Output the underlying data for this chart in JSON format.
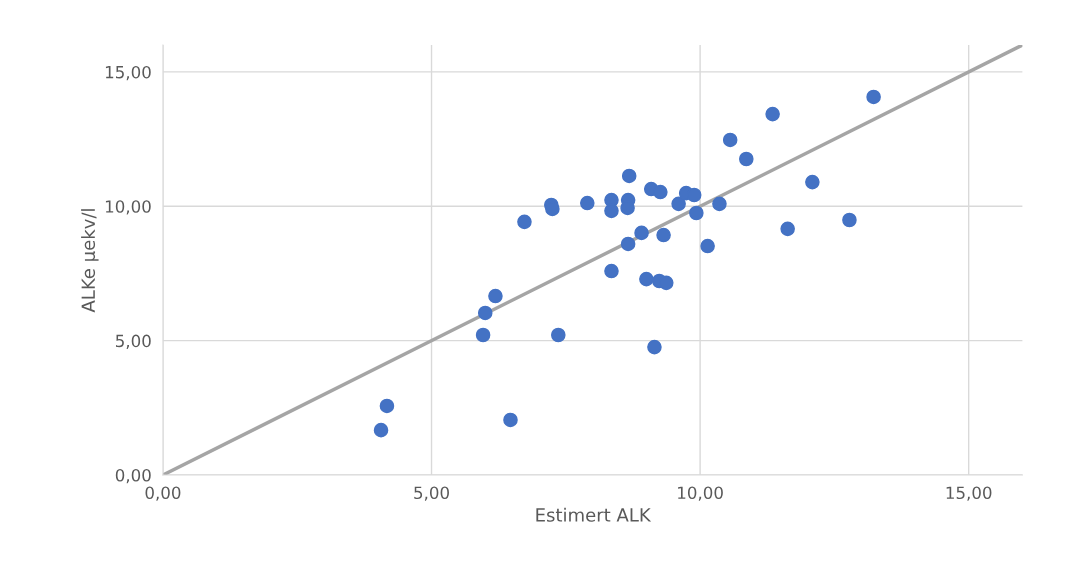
{
  "chart_data": {
    "type": "scatter",
    "xlabel": "Estimert ALK",
    "ylabel": "ALKe µekv/l",
    "xlim": [
      0,
      16
    ],
    "ylim": [
      0,
      16
    ],
    "xticks": [
      {
        "value": 0,
        "label": "0,00"
      },
      {
        "value": 5,
        "label": "5,00"
      },
      {
        "value": 10,
        "label": "10,00"
      },
      {
        "value": 15,
        "label": "15,00"
      }
    ],
    "yticks": [
      {
        "value": 0,
        "label": "0,00"
      },
      {
        "value": 5,
        "label": "5,00"
      },
      {
        "value": 10,
        "label": "10,00"
      },
      {
        "value": 15,
        "label": "15,00"
      }
    ],
    "grid": true,
    "marker": "circle",
    "series": [
      {
        "color": "#4472c4",
        "x": [
          4.06,
          4.17,
          6.47,
          5.96,
          6.0,
          6.19,
          7.36,
          6.73,
          7.23,
          7.25,
          7.9,
          8.35,
          8.35,
          8.35,
          8.66,
          8.65,
          8.68,
          8.66,
          8.91,
          9.0,
          9.09,
          9.26,
          9.15,
          9.24,
          9.37,
          9.32,
          9.6,
          9.74,
          9.89,
          9.93,
          10.14,
          10.36,
          10.56,
          10.86,
          11.35,
          11.63,
          12.09,
          12.78,
          13.23
        ],
        "values": [
          1.67,
          2.57,
          2.05,
          5.21,
          6.03,
          6.66,
          5.21,
          9.42,
          10.05,
          9.9,
          10.12,
          10.23,
          9.83,
          7.59,
          10.23,
          9.94,
          11.13,
          8.6,
          9.01,
          7.29,
          10.64,
          10.53,
          4.76,
          7.22,
          7.15,
          8.93,
          10.09,
          10.49,
          10.42,
          9.75,
          8.52,
          10.09,
          12.47,
          11.76,
          13.43,
          9.16,
          10.9,
          9.49,
          14.07
        ]
      },
      {
        "type": "line",
        "color": "#a5a5a5",
        "x": [
          0,
          16
        ],
        "values": [
          0,
          16
        ],
        "marker": "none",
        "line_style": "solid"
      }
    ]
  }
}
